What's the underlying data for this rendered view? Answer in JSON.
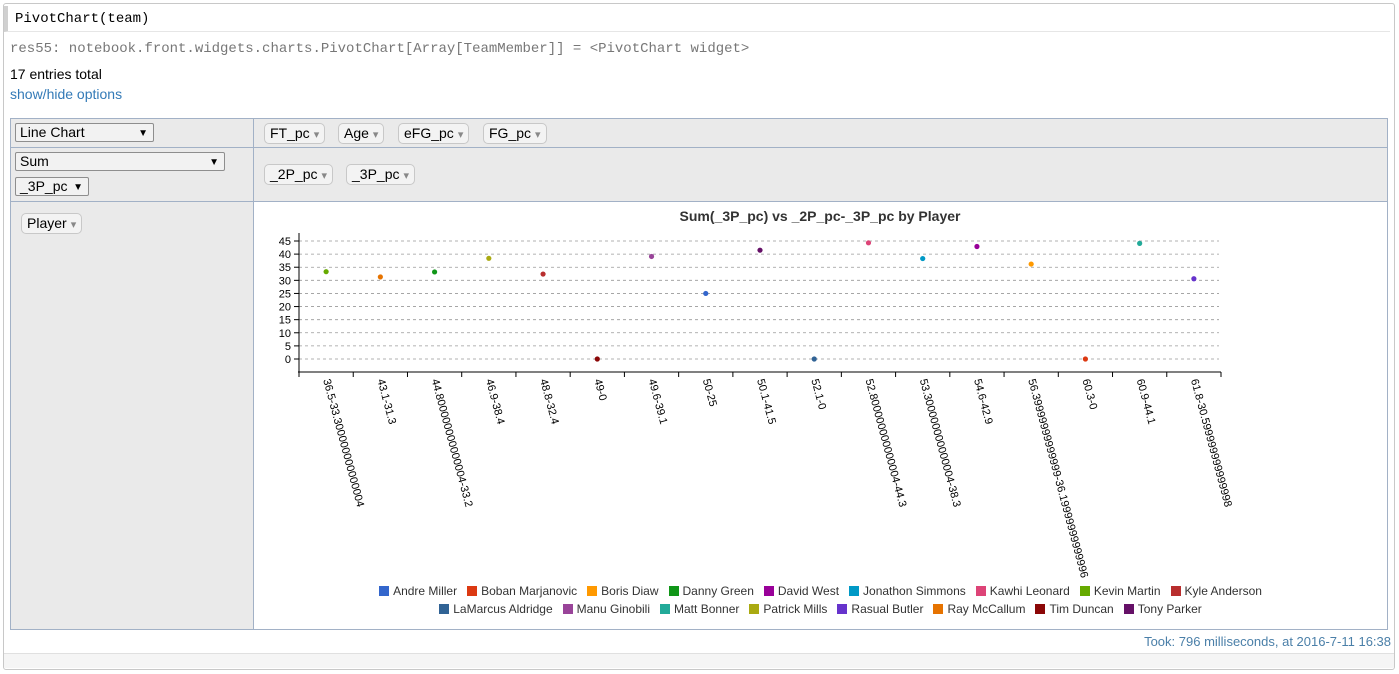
{
  "cell": {
    "code": "PivotChart(team)",
    "result_line": "res55: notebook.front.widgets.charts.PivotChart[Array[TeamMember]] = <PivotChart widget>"
  },
  "summary": {
    "entries": "17 entries total",
    "toggle": "show/hide options"
  },
  "pivot": {
    "renderer": {
      "selected": "Line Chart",
      "caret": "▼"
    },
    "aggregator": {
      "selected": "Sum",
      "caret": "▼"
    },
    "agg_attribute": {
      "selected": "_3P_pc",
      "caret": "▼"
    },
    "unused_attributes": [
      "FT_pc",
      "Age",
      "eFG_pc",
      "FG_pc"
    ],
    "col_attributes": [
      "_2P_pc",
      "_3P_pc"
    ],
    "row_attributes": [
      "Player"
    ],
    "pill_arrow": "▾"
  },
  "chart_data": {
    "type": "scatter",
    "title": "Sum(_3P_pc) vs _2P_pc-_3P_pc by Player",
    "categories": [
      "36.5-33.300000000000004",
      "43.1-31.3",
      "44.800000000000004-33.2",
      "46.9-38.4",
      "48.8-32.4",
      "49-0",
      "49.6-39.1",
      "50-25",
      "50.1-41.5",
      "52.1-0",
      "52.800000000000004-44.3",
      "53.300000000000004-38.3",
      "54.6-42.9",
      "56.39999999999999-36.19999999999996",
      "60.3-0",
      "60.9-44.1",
      "61.8-30.599999999999998"
    ],
    "ylim": [
      0,
      45
    ],
    "yticks": [
      0,
      5,
      10,
      15,
      20,
      25,
      30,
      35,
      40,
      45
    ],
    "grid": true,
    "legend_position": "bottom",
    "series": [
      {
        "name": "Andre Miller",
        "color": "#3366cc",
        "x": "50-25",
        "value": 25
      },
      {
        "name": "Boban Marjanovic",
        "color": "#dc3912",
        "x": "60.3-0",
        "value": 0
      },
      {
        "name": "Boris Diaw",
        "color": "#ff9900",
        "x": "56.39999999999999-36.19999999999996",
        "value": 36.2
      },
      {
        "name": "Danny Green",
        "color": "#109618",
        "x": "44.800000000000004-33.2",
        "value": 33.2
      },
      {
        "name": "David West",
        "color": "#990099",
        "x": "54.6-42.9",
        "value": 42.9
      },
      {
        "name": "Jonathon Simmons",
        "color": "#0099c6",
        "x": "53.300000000000004-38.3",
        "value": 38.3
      },
      {
        "name": "Kawhi Leonard",
        "color": "#dd4477",
        "x": "52.800000000000004-44.3",
        "value": 44.3
      },
      {
        "name": "Kevin Martin",
        "color": "#66aa00",
        "x": "36.5-33.300000000000004",
        "value": 33.3
      },
      {
        "name": "Kyle Anderson",
        "color": "#b82e2e",
        "x": "48.8-32.4",
        "value": 32.4
      },
      {
        "name": "LaMarcus Aldridge",
        "color": "#316395",
        "x": "52.1-0",
        "value": 0
      },
      {
        "name": "Manu Ginobili",
        "color": "#994499",
        "x": "49.6-39.1",
        "value": 39.1
      },
      {
        "name": "Matt Bonner",
        "color": "#22aa99",
        "x": "60.9-44.1",
        "value": 44.1
      },
      {
        "name": "Patrick Mills",
        "color": "#aaaa11",
        "x": "46.9-38.4",
        "value": 38.4
      },
      {
        "name": "Rasual Butler",
        "color": "#6633cc",
        "x": "61.8-30.599999999999998",
        "value": 30.6
      },
      {
        "name": "Ray McCallum",
        "color": "#e67300",
        "x": "43.1-31.3",
        "value": 31.3
      },
      {
        "name": "Tim Duncan",
        "color": "#8b0707",
        "x": "49-0",
        "value": 0
      },
      {
        "name": "Tony Parker",
        "color": "#651067",
        "x": "50.1-41.5",
        "value": 41.5
      }
    ]
  },
  "footer": {
    "took": "Took: 796 milliseconds, at 2016-7-11 16:38"
  }
}
